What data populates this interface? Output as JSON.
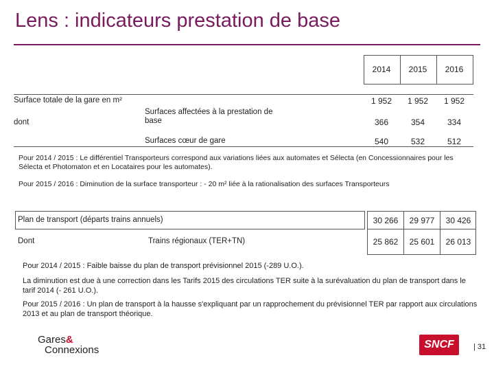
{
  "title": "Lens : indicateurs prestation de base",
  "table1": {
    "years": [
      "2014",
      "2015",
      "2016"
    ],
    "total_label": "Surface totale de la gare en m²",
    "total_values": [
      "1 952",
      "1 952",
      "1 952"
    ],
    "dont_label": "dont",
    "row1_label": "Surfaces affectées à la prestation de base",
    "row1_values": [
      "366",
      "354",
      "334"
    ],
    "row2_label": "Surfaces cœur de gare",
    "row2_values": [
      "540",
      "532",
      "512"
    ]
  },
  "notes1": {
    "n1": "Pour 2014 / 2015 : Le différentiel Transporteurs correspond aux variations liées aux automates et Sélecta (en Concessionnaires pour les Sélecta et Photomaton et en Locataires pour les automates).",
    "n2": "Pour 2015 / 2016 : Diminution de la surface transporteur : - 20 m² liée à la rationalisation des surfaces Transporteurs"
  },
  "table2": {
    "plan_label": "Plan de transport (départs trains annuels)",
    "plan_values": [
      "30 266",
      "29 977",
      "30 426"
    ],
    "dont_label": "Dont",
    "ter_label": "Trains régionaux (TER+TN)",
    "ter_values": [
      "25 862",
      "25 601",
      "26 013"
    ]
  },
  "notes2": {
    "n1": "Pour 2014 / 2015 : Faible baisse du plan de transport prévisionnel 2015 (-289 U.O.).",
    "n2": "La diminution est due à une correction dans les Tarifs 2015 des circulations TER suite à la surévaluation du plan de transport dans le tarif 2014 (- 261 U.O.).",
    "n3": "Pour 2015 / 2016 : Un plan de transport à la hausse s'expliquant par un rapprochement du prévisionnel TER par rapport aux circulations 2013 et au plan de transport théorique."
  },
  "footer": {
    "logo_line1": "Gares",
    "logo_amp": "&",
    "logo_line2": "Connexions",
    "sncf": "SNCF",
    "page": "| 31"
  }
}
